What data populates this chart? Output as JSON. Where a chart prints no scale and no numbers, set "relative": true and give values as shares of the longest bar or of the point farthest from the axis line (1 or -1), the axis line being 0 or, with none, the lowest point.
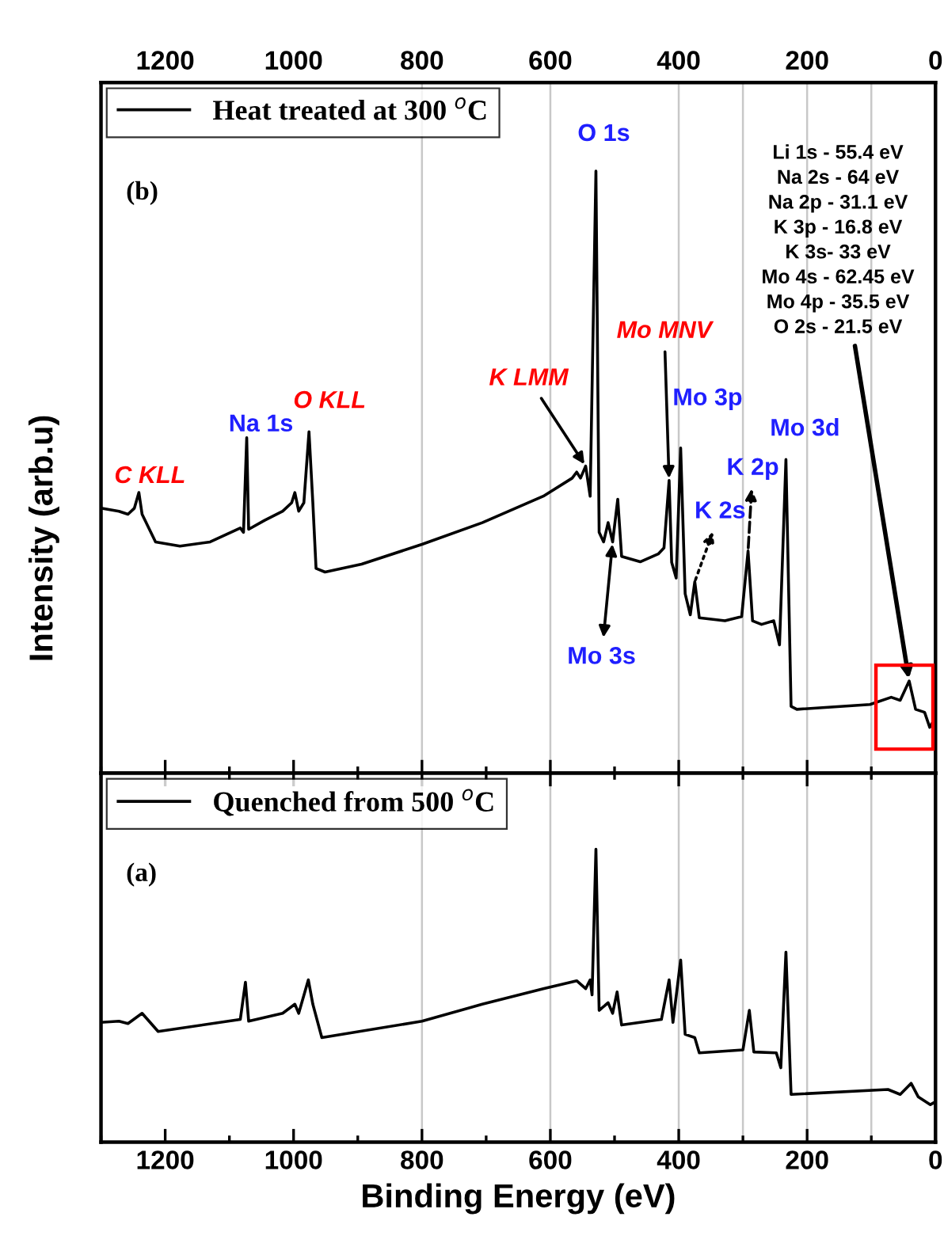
{
  "chart_data": [
    {
      "type": "line",
      "relative": true,
      "ylabel": "Intensity (arb.u)",
      "xlim": [
        1300,
        0
      ],
      "x2lim": [
        1300,
        0
      ],
      "x2ticks": [
        1200,
        1000,
        800,
        600,
        400,
        200,
        0
      ],
      "tick_labels": false,
      "legend": "top left",
      "line_style": "solid",
      "series": [
        {
          "name": "Heat treated at 300 $^{o}$C",
          "color": "#000000",
          "x": [
            1300,
            1272,
            1258,
            1248,
            1241,
            1236,
            1215,
            1177,
            1130,
            1083,
            1078,
            1073,
            1070,
            1045,
            1017,
            1003,
            998,
            992,
            984,
            976,
            970,
            965,
            951,
            894,
            800,
            706,
            611,
            566,
            559,
            553,
            545,
            538,
            529,
            524,
            517,
            510,
            503,
            495,
            489,
            460,
            432,
            423,
            415,
            411,
            404,
            397,
            390,
            382,
            375,
            368,
            328,
            302,
            292,
            285,
            271,
            252,
            243,
            233,
            225,
            216,
            102,
            69,
            55,
            41,
            31,
            17,
            9,
            3
          ],
          "values": [
            0.44,
            0.435,
            0.43,
            0.44,
            0.466,
            0.43,
            0.384,
            0.377,
            0.384,
            0.407,
            0.4,
            0.557,
            0.405,
            0.42,
            0.435,
            0.449,
            0.466,
            0.435,
            0.449,
            0.567,
            0.449,
            0.34,
            0.334,
            0.347,
            0.38,
            0.416,
            0.46,
            0.49,
            0.5,
            0.49,
            0.51,
            0.46,
            1.0,
            0.4,
            0.384,
            0.416,
            0.384,
            0.455,
            0.36,
            0.351,
            0.364,
            0.374,
            0.486,
            0.35,
            0.324,
            0.54,
            0.298,
            0.263,
            0.318,
            0.258,
            0.253,
            0.26,
            0.369,
            0.253,
            0.247,
            0.253,
            0.213,
            0.521,
            0.111,
            0.106,
            0.114,
            0.126,
            0.121,
            0.153,
            0.106,
            0.101,
            0.076,
            0.087
          ]
        }
      ],
      "ref_lines": [
        {
          "axis": "x",
          "value": 800,
          "color": "#c8c8c8"
        },
        {
          "axis": "x",
          "value": 600,
          "color": "#c8c8c8"
        },
        {
          "axis": "x",
          "value": 400,
          "color": "#c8c8c8"
        },
        {
          "axis": "x",
          "value": 300,
          "color": "#c8c8c8"
        },
        {
          "axis": "x",
          "value": 200,
          "color": "#c8c8c8"
        },
        {
          "axis": "x",
          "value": 100,
          "color": "#c8c8c8"
        }
      ],
      "annotations": [
        "(b)",
        {
          "text": "O 1s",
          "x": 529,
          "y": 1.0
        },
        {
          "text": "Na 1s",
          "x": 1073,
          "y": 0.557
        },
        {
          "text": "C KLL",
          "x": 1241,
          "y": 0.466
        },
        {
          "text": "O KLL",
          "x": 976,
          "y": 0.567
        },
        {
          "text": "K LMM",
          "x": 545,
          "y": 0.51
        },
        {
          "text": "Mo MNV",
          "x": 415,
          "y": 0.486
        },
        {
          "text": "Mo 3p",
          "x": 397,
          "y": 0.54
        },
        {
          "text": "K 2p",
          "x": 292,
          "y": 0.369
        },
        {
          "text": "K 2s",
          "x": 375,
          "y": 0.318
        },
        {
          "text": "Mo 3d",
          "x": 233,
          "y": 0.521
        },
        {
          "text": "Mo 3s",
          "x": 503,
          "y": 0.384
        },
        {
          "text": "Li 1s - 55.4 eV\nNa 2s - 64 eV\nNa 2p - 31.1 eV\nK 3p - 16.8 eV\nK 3s- 33 eV\nMo 4s - 62.45 eV\nMo 4p - 35.5 eV\nO 2s - 21.5 eV",
          "x": 41,
          "y": 0.153
        }
      ]
    },
    {
      "type": "line",
      "relative": true,
      "xlabel": "Binding Energy (eV)",
      "xlim": [
        1300,
        0
      ],
      "xticks": [
        1200,
        1000,
        800,
        600,
        400,
        200,
        0
      ],
      "tick_labels": "x",
      "legend": "top left",
      "line_style": "solid",
      "series": [
        {
          "name": "Quenched from 500 $^{o}$C",
          "color": "#000000",
          "x": [
            1300,
            1272,
            1258,
            1236,
            1211,
            1083,
            1075,
            1070,
            1017,
            998,
            992,
            977,
            970,
            956,
            800,
            706,
            611,
            559,
            545,
            538,
            535,
            529,
            524,
            510,
            503,
            496,
            489,
            427,
            415,
            409,
            397,
            390,
            375,
            368,
            300,
            290,
            283,
            248,
            241,
            233,
            225,
            74,
            55,
            38,
            27,
            8,
            0
          ],
          "values": [
            0.409,
            0.413,
            0.405,
            0.44,
            0.378,
            0.419,
            0.546,
            0.413,
            0.44,
            0.471,
            0.44,
            0.554,
            0.471,
            0.357,
            0.413,
            0.471,
            0.524,
            0.551,
            0.524,
            0.554,
            0.503,
            1.0,
            0.45,
            0.476,
            0.44,
            0.513,
            0.4,
            0.419,
            0.554,
            0.409,
            0.622,
            0.368,
            0.357,
            0.305,
            0.315,
            0.45,
            0.308,
            0.305,
            0.254,
            0.649,
            0.163,
            0.18,
            0.163,
            0.201,
            0.155,
            0.128,
            0.138
          ]
        }
      ],
      "ref_lines": [
        {
          "axis": "x",
          "value": 800,
          "color": "#c8c8c8"
        },
        {
          "axis": "x",
          "value": 600,
          "color": "#c8c8c8"
        },
        {
          "axis": "x",
          "value": 400,
          "color": "#c8c8c8"
        },
        {
          "axis": "x",
          "value": 300,
          "color": "#c8c8c8"
        },
        {
          "axis": "x",
          "value": 200,
          "color": "#c8c8c8"
        },
        {
          "axis": "x",
          "value": 100,
          "color": "#c8c8c8"
        }
      ],
      "annotations": [
        "(a)"
      ]
    }
  ]
}
